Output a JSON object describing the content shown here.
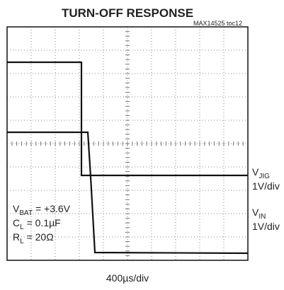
{
  "title": "TURN-OFF RESPONSE",
  "figure_id": "MAX14525 toc12",
  "time_scale": "400µs/div",
  "conditions": [
    {
      "symbol": "V",
      "subscript": "BAT",
      "value": " = +3.6V"
    },
    {
      "symbol": "C",
      "subscript": "L",
      "value": " = 0.1µF"
    },
    {
      "symbol": "R",
      "subscript": "L",
      "value": " = 20Ω"
    }
  ],
  "traces": [
    {
      "symbol": "V",
      "subscript": "JIG",
      "scale": "1V/div"
    },
    {
      "symbol": "V",
      "subscript": "IN",
      "scale": "1V/div"
    }
  ]
}
